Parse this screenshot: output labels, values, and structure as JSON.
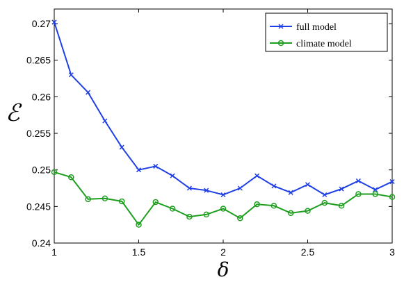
{
  "chart_data": {
    "type": "line",
    "xlabel": "δ",
    "ylabel": "ℰ",
    "xlim": [
      1,
      3
    ],
    "ylim": [
      0.24,
      0.272
    ],
    "xticks": [
      "1",
      "1.5",
      "2",
      "2.5",
      "3"
    ],
    "yticks": [
      "0.24",
      "0.245",
      "0.25",
      "0.255",
      "0.26",
      "0.265",
      "0.27"
    ],
    "grid": false,
    "legend_position": "top-right",
    "x": [
      1.0,
      1.1,
      1.2,
      1.3,
      1.4,
      1.5,
      1.6,
      1.7,
      1.8,
      1.9,
      2.0,
      2.1,
      2.2,
      2.3,
      2.4,
      2.5,
      2.6,
      2.7,
      2.8,
      2.9,
      3.0
    ],
    "series": [
      {
        "name": "full model",
        "color": "#1f3fe6",
        "marker": "x",
        "values": [
          0.2702,
          0.263,
          0.2606,
          0.2567,
          0.2531,
          0.25,
          0.2505,
          0.2492,
          0.2475,
          0.2472,
          0.2466,
          0.2475,
          0.2492,
          0.2478,
          0.2469,
          0.248,
          0.2466,
          0.2474,
          0.2485,
          0.2473,
          0.2484
        ]
      },
      {
        "name": "climate model",
        "color": "#1e9e1e",
        "marker": "o",
        "values": [
          0.2497,
          0.249,
          0.246,
          0.2461,
          0.2457,
          0.2425,
          0.2456,
          0.2447,
          0.2436,
          0.2439,
          0.2447,
          0.2434,
          0.2453,
          0.2451,
          0.2441,
          0.2444,
          0.2455,
          0.2451,
          0.2467,
          0.2467,
          0.2463
        ]
      }
    ]
  }
}
